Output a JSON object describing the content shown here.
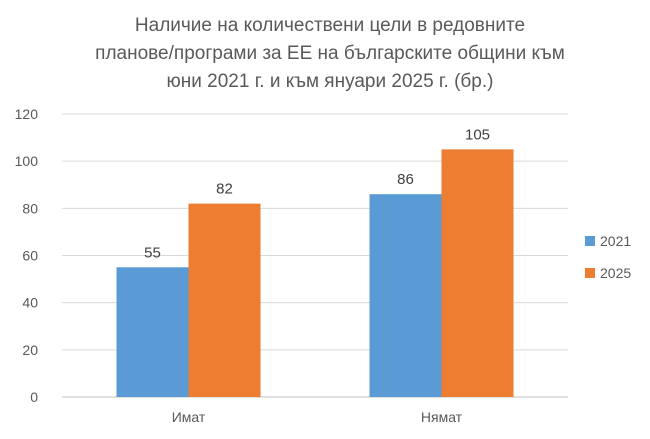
{
  "chart_data": {
    "type": "bar",
    "title_lines": [
      "Наличие на количествени цели в редовните",
      "планове/програми за ЕЕ на българските общини към",
      "юни 2021 г. и към януари 2025 г. (бр.)"
    ],
    "categories": [
      "Имат",
      "Нямат"
    ],
    "series": [
      {
        "name": "2021",
        "values": [
          55,
          86
        ],
        "color": "#5B9BD5"
      },
      {
        "name": "2025",
        "values": [
          82,
          105
        ],
        "color": "#ED7D31"
      }
    ],
    "ylim": [
      0,
      120
    ],
    "yticks": [
      0,
      20,
      40,
      60,
      80,
      100,
      120
    ],
    "grid": true,
    "legend_position": "right"
  }
}
